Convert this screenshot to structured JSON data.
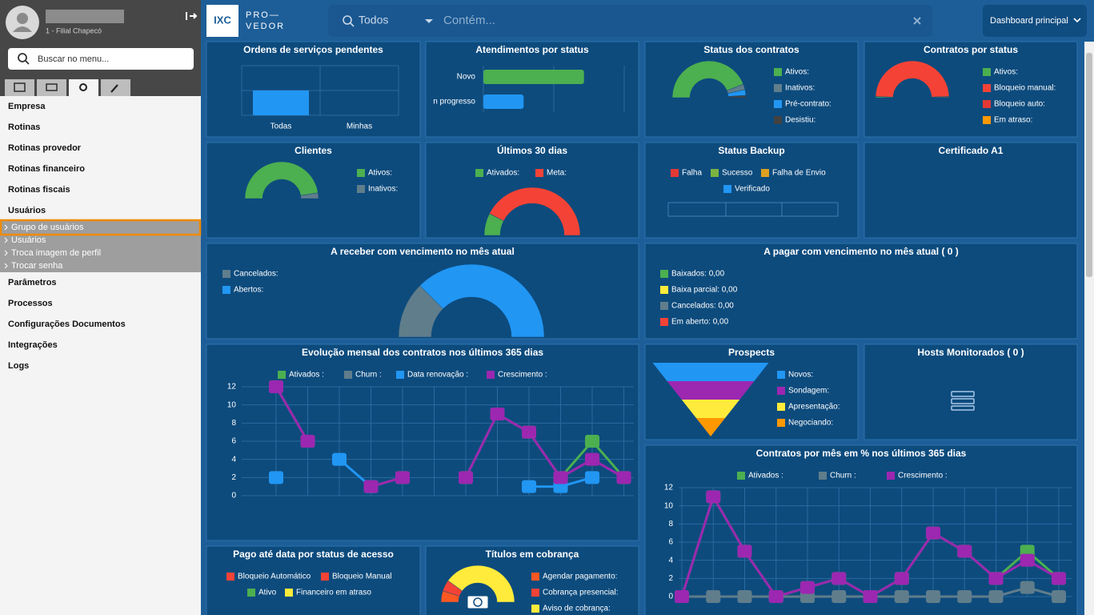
{
  "sidebar": {
    "branch": "1 - Filial Chapecó",
    "search_placeholder": "Buscar no menu...",
    "menu_top": [
      "Empresa",
      "Rotinas",
      "Rotinas provedor",
      "Rotinas financeiro",
      "Rotinas fiscais",
      "Usuários"
    ],
    "submenu": [
      "Grupo de usuários",
      "Usuários",
      "Troca imagem de perfil",
      "Trocar senha"
    ],
    "menu_bottom": [
      "Parâmetros",
      "Processos",
      "Configurações Documentos",
      "Integrações",
      "Logs"
    ]
  },
  "header": {
    "logo": "IXC",
    "logo_pro": "PRO—",
    "logo_vedor": "VEDOR",
    "filter": "Todos",
    "search_placeholder": "Contém...",
    "dashboard": "Dashboard principal"
  },
  "panels": [
    {
      "title": "Ordens de serviços pendentes",
      "type": "bar",
      "categories": [
        "Todas",
        "Minhas"
      ],
      "values": [
        1,
        0
      ],
      "color": "#2196f3",
      "ylim": [
        0,
        2
      ]
    },
    {
      "title": "Atendimentos por status",
      "type": "hbar",
      "categories": [
        "Novo",
        "n progresso"
      ],
      "values": [
        5,
        2
      ],
      "colors": [
        "#4caf50",
        "#2196f3"
      ],
      "xlim": [
        0,
        7
      ]
    },
    {
      "title": "Status dos contratos",
      "type": "donut",
      "categories": [
        "Ativos:",
        "Inativos:",
        "Pré-contrato:",
        "Desistiu:"
      ],
      "values": [
        88,
        5,
        5,
        2
      ],
      "colors": [
        "#4caf50",
        "#607d8b",
        "#2196f3",
        "#424242"
      ]
    },
    {
      "title": "Contratos por status",
      "type": "donut",
      "categories": [
        "Ativos:",
        "Bloqueio manual:",
        "Bloqueio auto:",
        "Em atraso:"
      ],
      "values": [
        1,
        98,
        0.5,
        0.5
      ],
      "colors": [
        "#4caf50",
        "#f44336",
        "#e53935",
        "#ff9800"
      ]
    },
    {
      "title": "Clientes",
      "type": "donut",
      "categories": [
        "Ativos:",
        "Inativos:"
      ],
      "values": [
        95,
        5
      ],
      "colors": [
        "#4caf50",
        "#607d8b"
      ]
    },
    {
      "title": "Últimos 30 dias",
      "type": "gauge",
      "categories": [
        "Ativados:",
        "Meta:"
      ],
      "values": [
        15,
        85
      ],
      "colors": [
        "#4caf50",
        "#f44336"
      ]
    },
    {
      "title": "Status Backup",
      "type": "legend",
      "legend": [
        "Falha",
        "Sucesso",
        "Falha de Envio",
        "Verificado"
      ],
      "colors": [
        "#e53935",
        "#7cb342",
        "#e0a020",
        "#2196f3"
      ]
    },
    {
      "title": "Certificado A1",
      "type": "empty"
    },
    {
      "title": "A receber com vencimento no mês atual",
      "type": "gauge",
      "categories": [
        "Cancelados:",
        "Abertos:"
      ],
      "values": [
        25,
        75
      ],
      "colors": [
        "#607d8b",
        "#2196f3"
      ]
    },
    {
      "title": "A pagar com vencimento no mês atual ( 0 )",
      "type": "legend",
      "legend": [
        "Baixados: 0,00",
        "Baixa parcial: 0,00",
        "Cancelados: 0,00",
        "Em aberto: 0,00"
      ],
      "colors": [
        "#4caf50",
        "#ffeb3b",
        "#607d8b",
        "#f44336"
      ]
    },
    {
      "title": "Evolução mensal dos contratos nos últimos 365 dias",
      "type": "line",
      "categories": [
        null,
        null,
        null,
        null,
        null,
        null,
        null,
        null,
        null,
        null,
        null,
        null
      ],
      "ylim": [
        0,
        12
      ],
      "yticks": [
        0,
        2,
        4,
        6,
        8,
        10,
        12
      ],
      "series": [
        {
          "name": "Ativados :",
          "color": "#4caf50",
          "values": [
            12,
            6,
            null,
            1,
            2,
            null,
            2,
            9,
            7,
            2,
            6,
            2
          ]
        },
        {
          "name": "Churn :",
          "color": "#607d8b",
          "values": [
            null,
            null,
            null,
            null,
            null,
            null,
            null,
            null,
            null,
            null,
            null,
            null
          ]
        },
        {
          "name": "Data renovação :",
          "color": "#2196f3",
          "values": [
            2,
            null,
            4,
            1,
            null,
            null,
            null,
            null,
            1,
            1,
            2,
            null
          ]
        },
        {
          "name": "Crescimento :",
          "color": "#9c27b0",
          "values": [
            12,
            6,
            null,
            1,
            2,
            null,
            2,
            9,
            7,
            2,
            4,
            2
          ]
        }
      ]
    },
    {
      "title": "Prospects",
      "type": "funnel",
      "categories": [
        "Novos:",
        "Sondagem:",
        "Apresentação:",
        "Negociando:"
      ],
      "values": [
        4,
        3,
        2,
        1
      ],
      "colors": [
        "#2196f3",
        "#9c27b0",
        "#ffeb3b",
        "#ff9800"
      ]
    },
    {
      "title": "Hosts Monitorados ( 0 )",
      "type": "empty"
    },
    {
      "title": "Contratos por mês em % nos últimos 365 dias",
      "type": "line",
      "categories": [
        null,
        null,
        null,
        null,
        null,
        null,
        null,
        null,
        null,
        null,
        null,
        null,
        null
      ],
      "ylim": [
        0,
        12
      ],
      "yticks": [
        0,
        2,
        4,
        6,
        8,
        10,
        12
      ],
      "series": [
        {
          "name": "Ativados :",
          "color": "#4caf50",
          "values": [
            0,
            11,
            5,
            0,
            1,
            2,
            0,
            2,
            7,
            5,
            2,
            5,
            2
          ]
        },
        {
          "name": "Churn :",
          "color": "#607d8b",
          "values": [
            0,
            0,
            0,
            0,
            0,
            0,
            0,
            0,
            0,
            0,
            0,
            1,
            0
          ]
        },
        {
          "name": "Crescimento :",
          "color": "#9c27b0",
          "values": [
            0,
            11,
            5,
            0,
            1,
            2,
            0,
            2,
            7,
            5,
            2,
            4,
            2
          ]
        }
      ]
    },
    {
      "title": "Pago até data por status de acesso",
      "type": "legend",
      "legend": [
        "Bloqueio Automático",
        "Bloqueio Manual",
        "Ativo",
        "Financeiro em atraso"
      ],
      "colors": [
        "#f44336",
        "#f44336",
        "#4caf50",
        "#ffeb3b"
      ]
    },
    {
      "title": "Títulos em cobrança",
      "type": "donut",
      "categories": [
        "Agendar pagamento:",
        "Cobrança presencial:",
        "Aviso de cobrança:"
      ],
      "values": [
        10,
        10,
        80
      ],
      "colors": [
        "#ff5722",
        "#f44336",
        "#ffeb3b"
      ]
    }
  ]
}
